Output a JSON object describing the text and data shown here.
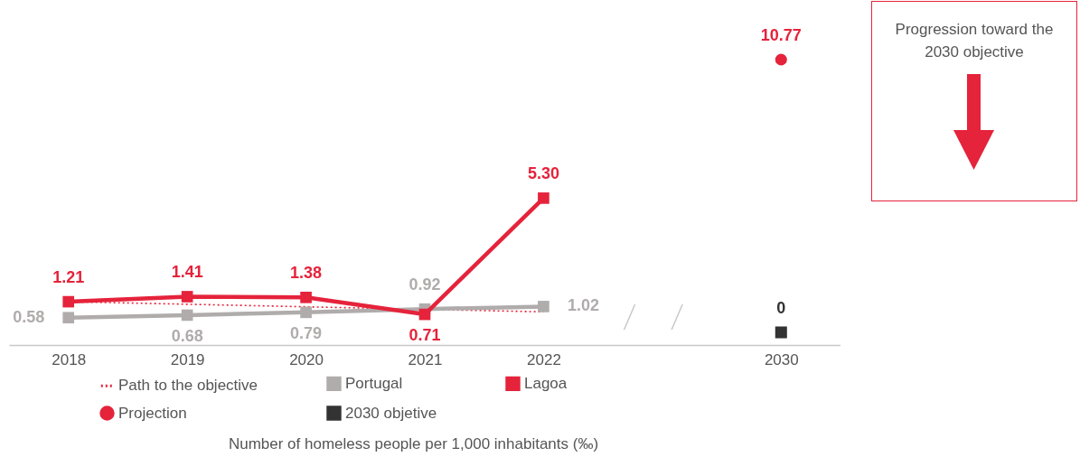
{
  "chart_data": {
    "type": "line",
    "categories": [
      "2018",
      "2019",
      "2020",
      "2021",
      "2022",
      null,
      "2030"
    ],
    "series": [
      {
        "name": "Path to the objective",
        "color": "#e5233b",
        "line_style": "dotted",
        "marker": "none",
        "values": [
          1.21,
          1.11,
          1.01,
          0.91,
          0.81,
          null,
          null
        ]
      },
      {
        "name": "Portugal",
        "color": "#b0acac",
        "line_style": "solid",
        "marker": "square",
        "values": [
          0.58,
          0.68,
          0.79,
          0.92,
          1.02,
          null,
          null
        ],
        "value_labels": [
          "0.58",
          "0.68",
          "0.79",
          "0.92",
          "1.02",
          null,
          null
        ]
      },
      {
        "name": "Lagoa",
        "color": "#e5233b",
        "line_style": "solid",
        "marker": "square",
        "values": [
          1.21,
          1.41,
          1.38,
          0.71,
          5.3,
          null,
          null
        ],
        "value_labels": [
          "1.21",
          "1.41",
          "1.38",
          "0.71",
          "5.30",
          null,
          null
        ]
      },
      {
        "name": "Projection",
        "type": "scatter",
        "color": "#e5233b",
        "marker": "circle",
        "values": [
          null,
          null,
          null,
          null,
          null,
          null,
          10.77
        ],
        "value_labels": [
          null,
          null,
          null,
          null,
          null,
          null,
          "10.77"
        ]
      },
      {
        "name": "2030 objetive",
        "type": "scatter",
        "color": "#333333",
        "marker": "square",
        "values": [
          null,
          null,
          null,
          null,
          null,
          null,
          0
        ],
        "value_labels": [
          null,
          null,
          null,
          null,
          null,
          null,
          "0"
        ]
      }
    ],
    "legend": "bottom",
    "tick_labels": "x",
    "annotations": [
      "Progression toward the 2030 objective",
      "Number of homeless people per 1,000 inhabitants (‰)"
    ]
  }
}
